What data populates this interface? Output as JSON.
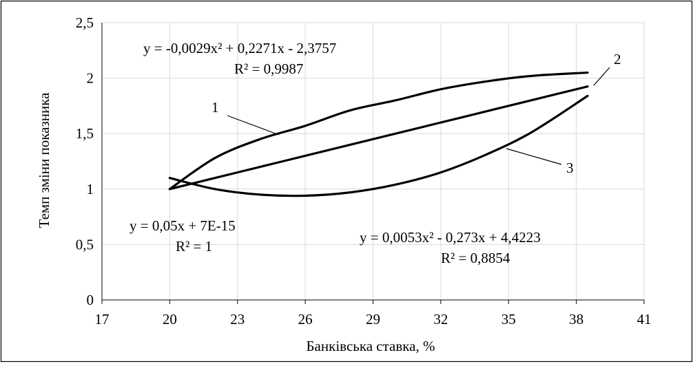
{
  "chart_data": {
    "type": "line",
    "xlabel": "Банківська ставка, %",
    "ylabel": "Темп зміни показника",
    "xlim": [
      17,
      41
    ],
    "ylim": [
      0,
      2.5
    ],
    "x_ticks": [
      17,
      20,
      23,
      26,
      29,
      32,
      35,
      38,
      41
    ],
    "x_tick_labels": [
      "17",
      "20",
      "23",
      "26",
      "29",
      "32",
      "35",
      "38",
      "41"
    ],
    "y_ticks": [
      0,
      0.5,
      1,
      1.5,
      2,
      2.5
    ],
    "y_tick_labels": [
      "0",
      "0,5",
      "1",
      "1,5",
      "2",
      "2,5"
    ],
    "grid": "vertical and horizontal major gridlines",
    "series": [
      {
        "label": "1",
        "x": [
          20,
          22,
          24,
          26,
          28,
          30,
          32,
          34,
          36,
          38.5
        ],
        "y": [
          1.0,
          1.28,
          1.45,
          1.57,
          1.71,
          1.8,
          1.9,
          1.97,
          2.02,
          2.05
        ],
        "trendline": {
          "equation": "y = -0,0029x² + 0,2271x - 2,3757",
          "r2": "R² = 0,9987"
        }
      },
      {
        "label": "2",
        "x": [
          20,
          22,
          24,
          26,
          28,
          30,
          32,
          34,
          36,
          38.5
        ],
        "y": [
          1.0,
          1.1,
          1.2,
          1.3,
          1.4,
          1.5,
          1.6,
          1.7,
          1.8,
          1.925
        ],
        "trendline": {
          "equation": "y = 0,05x + 7E-15",
          "r2": "R² = 1"
        }
      },
      {
        "label": "3",
        "x": [
          20,
          22,
          24,
          26,
          28,
          30,
          32,
          34,
          36,
          38.5
        ],
        "y": [
          1.1,
          1.0,
          0.95,
          0.94,
          0.97,
          1.04,
          1.15,
          1.31,
          1.51,
          1.84
        ],
        "trendline": {
          "equation": "y = 0,0053x² - 0,273x + 4,4223",
          "r2": "R² = 0,8854"
        }
      }
    ]
  }
}
